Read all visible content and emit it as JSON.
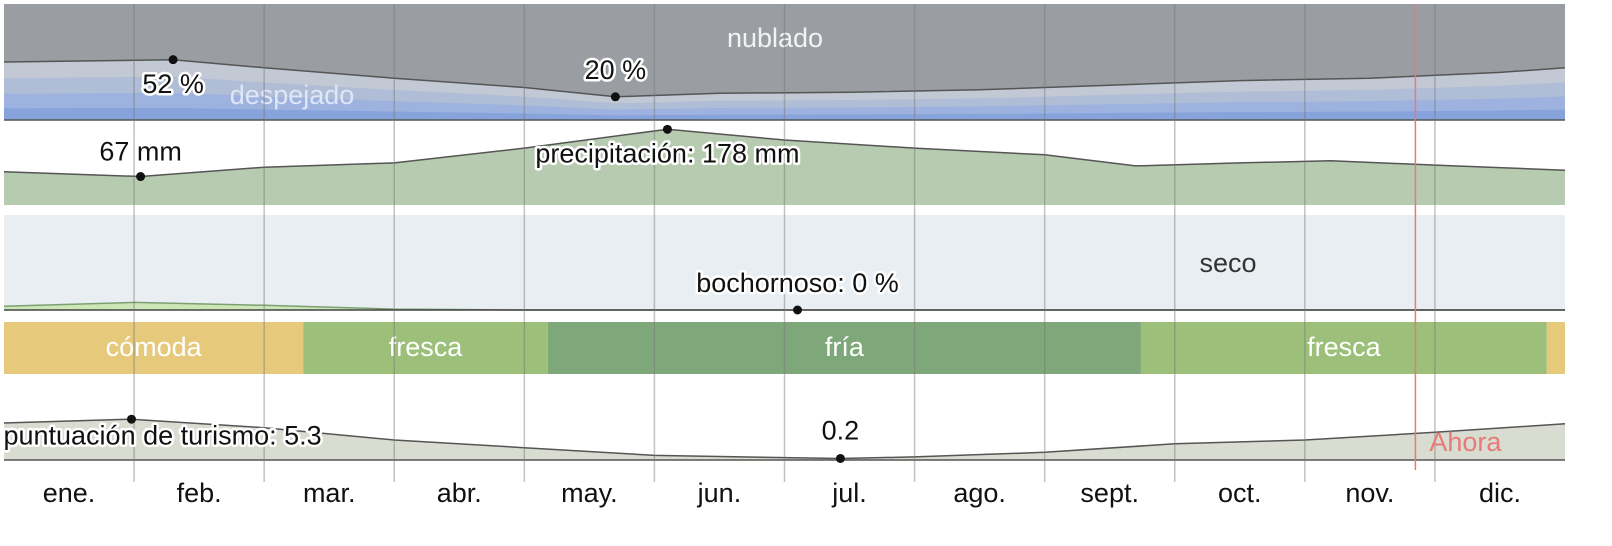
{
  "chart_data": {
    "type": "climate-summary",
    "xlim": [
      0,
      12
    ],
    "months": [
      "ene.",
      "feb.",
      "mar.",
      "abr.",
      "may.",
      "jun.",
      "jul.",
      "ago.",
      "sept.",
      "oct.",
      "nov.",
      "dic."
    ],
    "now": {
      "x": 10.85,
      "label": "Ahora",
      "color": "#e87a7a"
    },
    "clouds": {
      "label_cloudy": "nublado",
      "label_clear": "despejado",
      "ylim": [
        0,
        100
      ],
      "color": "#c3c9d4",
      "cloudy_color": "#9a9ea3",
      "x": [
        0,
        1.3,
        2,
        3,
        4,
        4.7,
        5.5,
        6.5,
        7.5,
        8.5,
        9.5,
        10.5,
        11.5,
        12
      ],
      "values": [
        50,
        52,
        45,
        36,
        28,
        20,
        23,
        24,
        26,
        30,
        34,
        36,
        41,
        45
      ],
      "annotations": [
        {
          "x": 1.3,
          "value": 52,
          "label": "52 %"
        },
        {
          "x": 4.7,
          "value": 20,
          "label": "20 %"
        }
      ]
    },
    "precipitation": {
      "ylim": [
        0,
        200
      ],
      "color": "#b7cbb0",
      "x": [
        0,
        1.05,
        2,
        3,
        4,
        5.1,
        6,
        7,
        8,
        8.7,
        9.5,
        10.2,
        11,
        12
      ],
      "values": [
        78,
        67,
        89,
        99,
        134,
        178,
        153,
        134,
        118,
        92,
        99,
        104,
        94,
        82
      ],
      "annotations": [
        {
          "x": 1.05,
          "value": 67,
          "label": "67 mm"
        },
        {
          "x": 5.1,
          "value": 178,
          "label": "precipitación: 178 mm"
        }
      ]
    },
    "humidity": {
      "label_dry": "seco",
      "ylim": [
        0,
        100
      ],
      "color": "#cde6b8",
      "background": "#e9eef2",
      "x": [
        0,
        1,
        2,
        3,
        4,
        6.1,
        12
      ],
      "values": [
        4,
        8,
        5,
        1,
        0,
        0,
        0
      ],
      "annotations": [
        {
          "x": 6.1,
          "value": 0,
          "label": "bochornoso: 0 %"
        }
      ]
    },
    "temperature": {
      "segments": [
        {
          "start": 0,
          "end": 2.3,
          "label": "cómoda",
          "color": "#e6c97a"
        },
        {
          "start": 2.3,
          "end": 4.18,
          "label": "fresca",
          "color": "#9cc07a"
        },
        {
          "start": 4.18,
          "end": 8.74,
          "label": "fría",
          "color": "#7ea87a"
        },
        {
          "start": 8.74,
          "end": 11.86,
          "label": "fresca",
          "color": "#9cc07a"
        },
        {
          "start": 11.86,
          "end": 12,
          "label": null,
          "color": "#e6c97a"
        }
      ]
    },
    "tourism": {
      "ylim": [
        0,
        10
      ],
      "color": "#d9dcd0",
      "x": [
        0,
        0.98,
        2,
        3,
        4,
        5,
        6.43,
        7,
        8,
        9,
        10,
        11,
        12
      ],
      "values": [
        4.8,
        5.3,
        4.2,
        2.6,
        1.6,
        0.6,
        0.2,
        0.4,
        1.0,
        2.1,
        2.6,
        3.6,
        4.7
      ],
      "annotations": [
        {
          "x": 0.98,
          "value": 5.3,
          "label": "puntuación de turismo: 5.3"
        },
        {
          "x": 6.43,
          "value": 0.2,
          "label": "0.2"
        }
      ]
    }
  }
}
